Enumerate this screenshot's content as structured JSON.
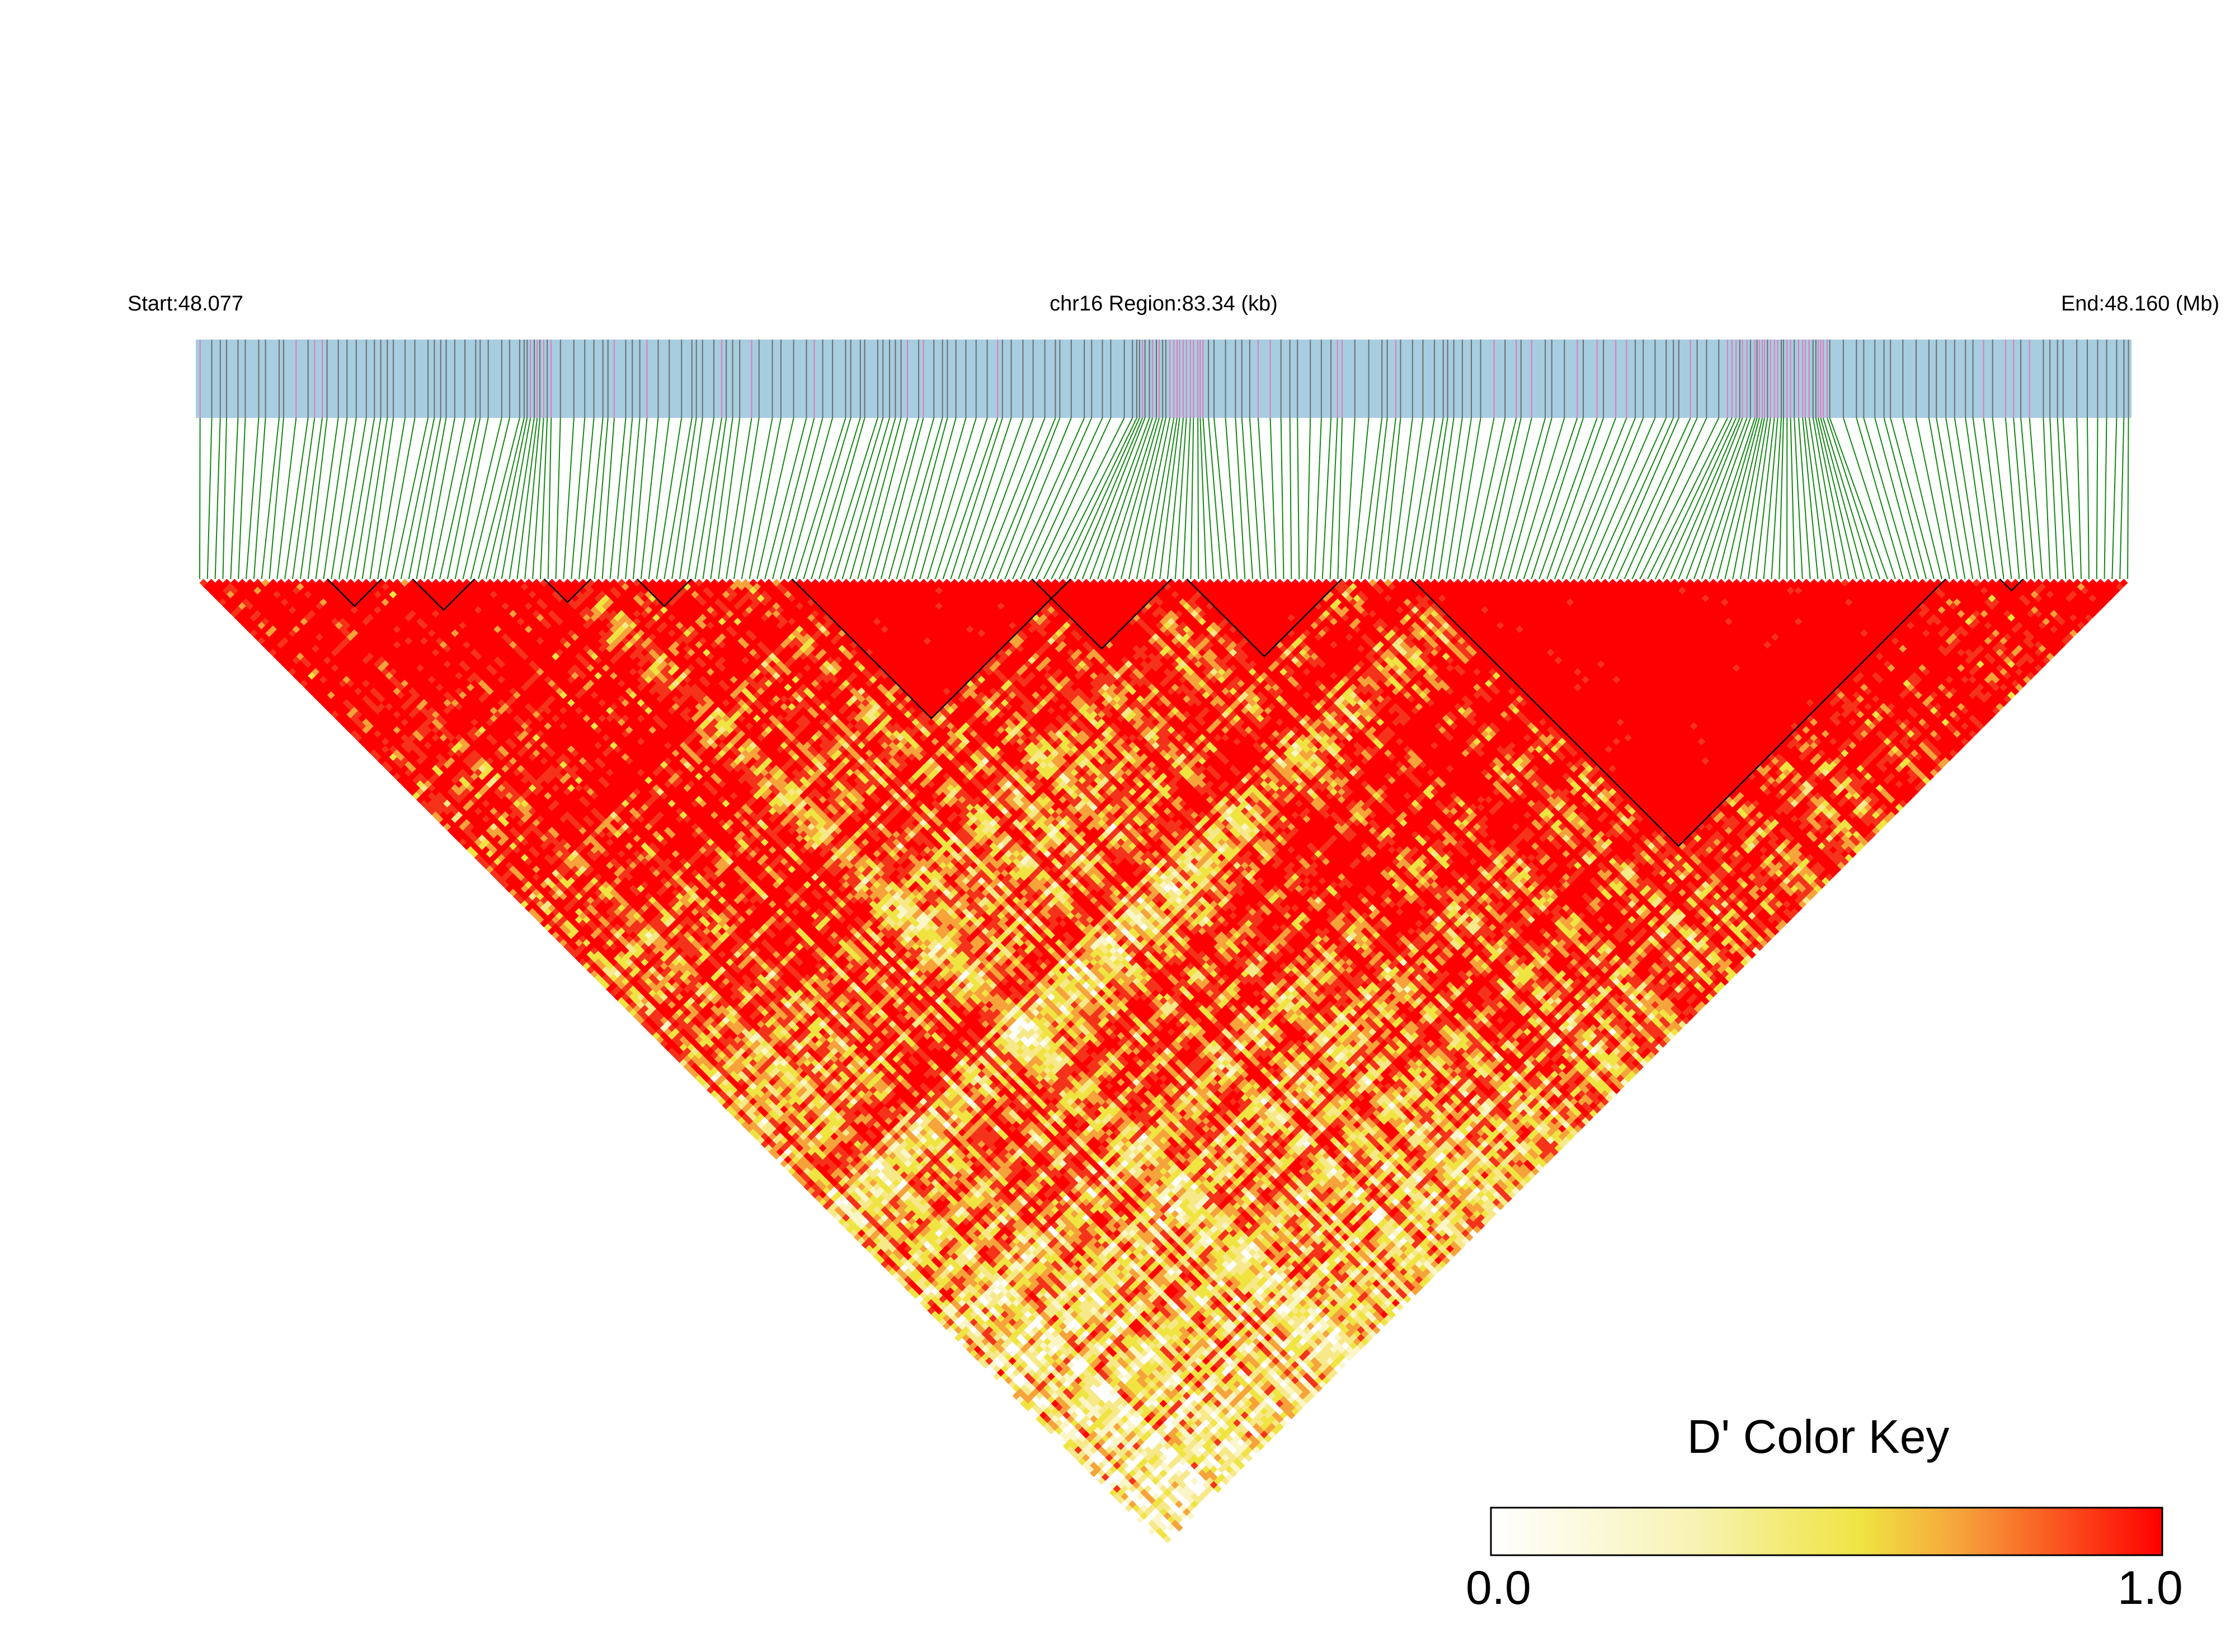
{
  "chart_data": {
    "type": "heatmap",
    "description_labels": {
      "start_label": "Start:48.077",
      "region_label": "chr16 Region:83.34 (kb)",
      "end_label": "End:48.160 (Mb)"
    },
    "region": {
      "chromosome": "chr16",
      "start_mb": 48.077,
      "end_mb": 48.16,
      "length_kb": 83.34
    },
    "color_key": {
      "title": "D' Color Key",
      "min_label": "0.0",
      "max_label": "1.0",
      "min": 0.0,
      "max": 1.0
    },
    "colors": {
      "track_fill": "#a6cde0",
      "snp_tick": "#6e6e6e",
      "highlight_tick": "#e07bbb",
      "connector": "#138813",
      "high": "#ff0000",
      "low": "#ffffff"
    },
    "snp_count": 250,
    "haplotype_blocks": [
      {
        "from_snp": 17,
        "to_snp": 23
      },
      {
        "from_snp": 28,
        "to_snp": 35
      },
      {
        "from_snp": 45,
        "to_snp": 50
      },
      {
        "from_snp": 57,
        "to_snp": 63
      },
      {
        "from_snp": 77,
        "to_snp": 112
      },
      {
        "from_snp": 108,
        "to_snp": 125
      },
      {
        "from_snp": 128,
        "to_snp": 147
      },
      {
        "from_snp": 157,
        "to_snp": 225
      },
      {
        "from_snp": 233,
        "to_snp": 235
      }
    ]
  }
}
